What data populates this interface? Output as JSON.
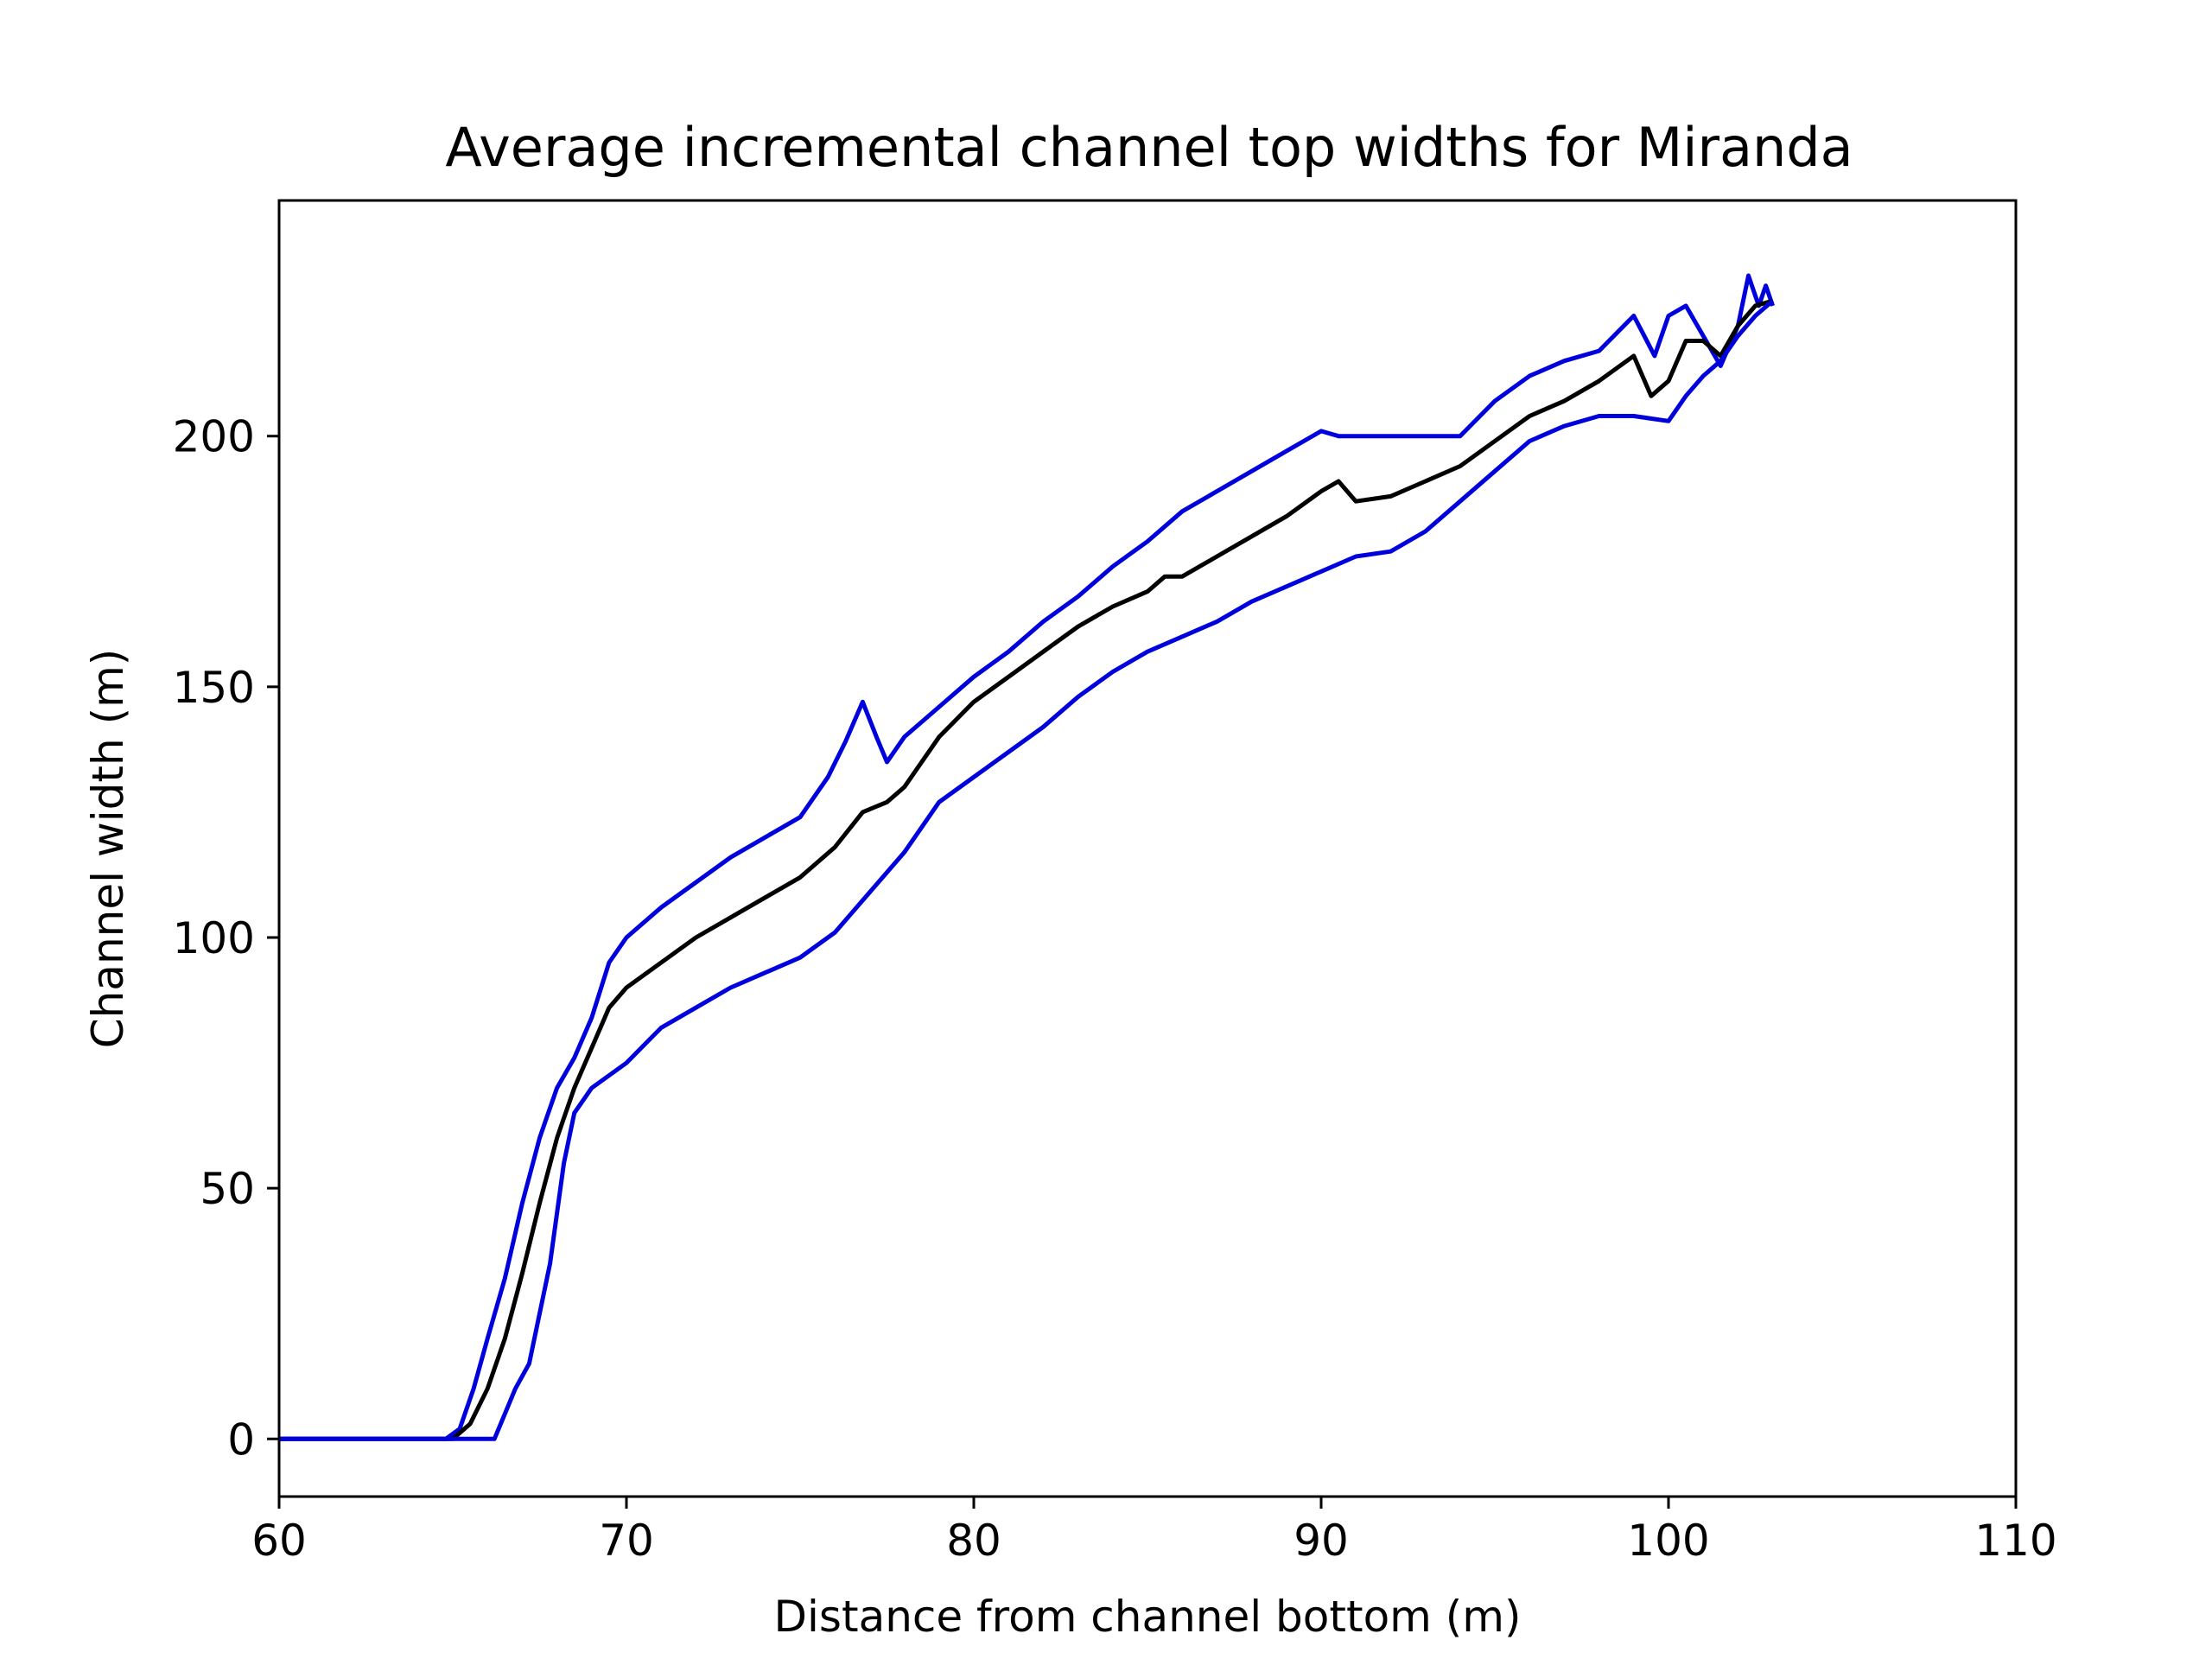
{
  "chart_data": {
    "type": "line",
    "title": "Average incremental channel top widths for Miranda",
    "xlabel": "Distance from channel bottom (m)",
    "ylabel": "Channel width (m)",
    "xlim": [
      60,
      110
    ],
    "ylim": [
      -11.5,
      247
    ],
    "xticks": [
      60,
      70,
      80,
      90,
      100,
      110
    ],
    "yticks": [
      0,
      50,
      100,
      150,
      200
    ],
    "grid": false,
    "legend": "none",
    "series": [
      {
        "color": "#0000dd",
        "points": [
          [
            60,
            0
          ],
          [
            64.8,
            0
          ],
          [
            65.2,
            2
          ],
          [
            65.6,
            10
          ],
          [
            66,
            20
          ],
          [
            66.5,
            32
          ],
          [
            67,
            47
          ],
          [
            67.5,
            60
          ],
          [
            68,
            70
          ],
          [
            68.5,
            76
          ],
          [
            69,
            84
          ],
          [
            69.5,
            95
          ],
          [
            70,
            100
          ],
          [
            71,
            106
          ],
          [
            72,
            111
          ],
          [
            73,
            116
          ],
          [
            74,
            120
          ],
          [
            75,
            124
          ],
          [
            75.8,
            132
          ],
          [
            76.3,
            139
          ],
          [
            76.8,
            147
          ],
          [
            77.2,
            140
          ],
          [
            77.5,
            135
          ],
          [
            78,
            140
          ],
          [
            79,
            146
          ],
          [
            80,
            152
          ],
          [
            81,
            157
          ],
          [
            82,
            163
          ],
          [
            83,
            168
          ],
          [
            84,
            174
          ],
          [
            85,
            179
          ],
          [
            86,
            185
          ],
          [
            87,
            189
          ],
          [
            88,
            193
          ],
          [
            89,
            197
          ],
          [
            90,
            201
          ],
          [
            90.5,
            200
          ],
          [
            91,
            200
          ],
          [
            92,
            200
          ],
          [
            93,
            200
          ],
          [
            94,
            200
          ],
          [
            95,
            207
          ],
          [
            96,
            212
          ],
          [
            97,
            215
          ],
          [
            98,
            217
          ],
          [
            99,
            224
          ],
          [
            99.3,
            220
          ],
          [
            99.6,
            216
          ],
          [
            100,
            224
          ],
          [
            100.5,
            226
          ],
          [
            101,
            220
          ],
          [
            101.5,
            214
          ],
          [
            102,
            222
          ],
          [
            102.3,
            232
          ],
          [
            102.6,
            226
          ],
          [
            102.8,
            230
          ],
          [
            103,
            226
          ]
        ]
      },
      {
        "color": "#000000",
        "points": [
          [
            60,
            0
          ],
          [
            65,
            0
          ],
          [
            65.5,
            3
          ],
          [
            66,
            10
          ],
          [
            66.5,
            20
          ],
          [
            67,
            33
          ],
          [
            67.5,
            47
          ],
          [
            68,
            60
          ],
          [
            68.5,
            70
          ],
          [
            69,
            78
          ],
          [
            69.5,
            86
          ],
          [
            70,
            90
          ],
          [
            71,
            95
          ],
          [
            72,
            100
          ],
          [
            73,
            104
          ],
          [
            74,
            108
          ],
          [
            75,
            112
          ],
          [
            76,
            118
          ],
          [
            76.8,
            125
          ],
          [
            77.5,
            127
          ],
          [
            78,
            130
          ],
          [
            79,
            140
          ],
          [
            80,
            147
          ],
          [
            81,
            152
          ],
          [
            82,
            157
          ],
          [
            83,
            162
          ],
          [
            84,
            166
          ],
          [
            85,
            169
          ],
          [
            85.5,
            172
          ],
          [
            86,
            172
          ],
          [
            87,
            176
          ],
          [
            88,
            180
          ],
          [
            89,
            184
          ],
          [
            90,
            189
          ],
          [
            90.5,
            191
          ],
          [
            91,
            187
          ],
          [
            92,
            188
          ],
          [
            93,
            191
          ],
          [
            94,
            194
          ],
          [
            95,
            199
          ],
          [
            96,
            204
          ],
          [
            97,
            207
          ],
          [
            98,
            211
          ],
          [
            99,
            216
          ],
          [
            99.5,
            208
          ],
          [
            100,
            211
          ],
          [
            100.5,
            219
          ],
          [
            101,
            219
          ],
          [
            101.5,
            216
          ],
          [
            102,
            222
          ],
          [
            102.5,
            226
          ],
          [
            103,
            227
          ]
        ]
      },
      {
        "color": "#0000dd",
        "points": [
          [
            60,
            0
          ],
          [
            66.2,
            0
          ],
          [
            66.5,
            5
          ],
          [
            66.8,
            10
          ],
          [
            67.2,
            15
          ],
          [
            67.5,
            25
          ],
          [
            67.8,
            35
          ],
          [
            68.2,
            55
          ],
          [
            68.5,
            65
          ],
          [
            69,
            70
          ],
          [
            70,
            75
          ],
          [
            71,
            82
          ],
          [
            72,
            86
          ],
          [
            73,
            90
          ],
          [
            74,
            93
          ],
          [
            75,
            96
          ],
          [
            76,
            101
          ],
          [
            77,
            109
          ],
          [
            78,
            117
          ],
          [
            79,
            127
          ],
          [
            80,
            132
          ],
          [
            81,
            137
          ],
          [
            82,
            142
          ],
          [
            83,
            148
          ],
          [
            84,
            153
          ],
          [
            85,
            157
          ],
          [
            86,
            160
          ],
          [
            87,
            163
          ],
          [
            88,
            167
          ],
          [
            89,
            170
          ],
          [
            90,
            173
          ],
          [
            91,
            176
          ],
          [
            92,
            177
          ],
          [
            93,
            181
          ],
          [
            94,
            187
          ],
          [
            95,
            193
          ],
          [
            96,
            199
          ],
          [
            97,
            202
          ],
          [
            98,
            204
          ],
          [
            99,
            204
          ],
          [
            100,
            203
          ],
          [
            100.5,
            208
          ],
          [
            101,
            212
          ],
          [
            101.5,
            215
          ],
          [
            102,
            220
          ],
          [
            102.5,
            224
          ],
          [
            103,
            227
          ]
        ]
      }
    ]
  }
}
